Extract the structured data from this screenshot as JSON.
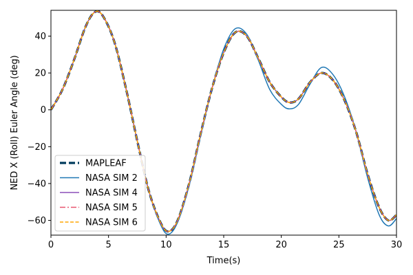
{
  "chart_data": {
    "type": "line",
    "title": "",
    "xlabel": "Time(s)",
    "ylabel": "NED X (Roll) Euler Angle (deg)",
    "xlim": [
      0,
      30
    ],
    "ylim": [
      -68,
      54
    ],
    "xticks": [
      0,
      5,
      10,
      15,
      20,
      25,
      30
    ],
    "yticks": [
      -60,
      -40,
      -20,
      0,
      20,
      40
    ],
    "grid": false,
    "legend_position": "lower-left",
    "x": [
      0,
      1,
      2,
      3,
      3.8,
      4.5,
      5.5,
      6.5,
      7.5,
      8.5,
      9.5,
      10.2,
      11,
      12,
      13,
      14,
      15,
      16,
      17,
      18,
      19,
      20,
      20.7,
      21.5,
      22.5,
      23.5,
      24.5,
      25.5,
      26.5,
      27.5,
      28.5,
      29.3,
      30
    ],
    "series": [
      {
        "name": "MAPLEAF",
        "color": "#003a5c",
        "dash": "dashed-thick",
        "values": [
          0,
          11,
          27,
          45,
          53,
          51,
          37,
          12,
          -17,
          -44,
          -61,
          -66,
          -60,
          -40,
          -13,
          12,
          31,
          42,
          40,
          28,
          15,
          7,
          4,
          6,
          15,
          20,
          16,
          5,
          -12,
          -35,
          -53,
          -60,
          -57
        ]
      },
      {
        "name": "NASA SIM 2",
        "color": "#1f77b4",
        "dash": "solid",
        "values": [
          0,
          11,
          27,
          45,
          53,
          51,
          37,
          12,
          -17,
          -44,
          -62,
          -67.5,
          -61,
          -41,
          -14,
          12,
          33,
          44,
          41,
          27,
          11,
          3,
          0.5,
          3,
          14,
          23,
          19,
          7,
          -12,
          -37,
          -57,
          -63,
          -59
        ]
      },
      {
        "name": "NASA SIM 4",
        "color": "#8a4fb8",
        "dash": "solid",
        "values": [
          0,
          11,
          27,
          45,
          53,
          51,
          37,
          12,
          -17,
          -44,
          -61,
          -66,
          -60,
          -40,
          -13,
          12,
          31,
          42,
          40,
          28,
          15,
          7,
          4,
          6,
          15,
          20,
          16,
          5,
          -12,
          -35,
          -53,
          -60,
          -57
        ]
      },
      {
        "name": "NASA SIM 5",
        "color": "#e8526e",
        "dash": "dashdot",
        "values": [
          0,
          11,
          27,
          45,
          53,
          51,
          37,
          12,
          -17,
          -44,
          -61,
          -66,
          -60,
          -40,
          -13,
          12,
          31,
          42,
          40,
          28,
          15,
          7,
          4,
          6,
          15,
          20,
          16,
          5,
          -12,
          -35,
          -53,
          -60,
          -57
        ]
      },
      {
        "name": "NASA SIM 6",
        "color": "#ffa500",
        "dash": "dashed",
        "values": [
          0,
          11,
          27,
          45,
          53,
          51,
          37,
          12,
          -17,
          -44,
          -61,
          -66,
          -60,
          -40,
          -13,
          12,
          31,
          42,
          40,
          28,
          15,
          7,
          4,
          6,
          15,
          20,
          16,
          5,
          -12,
          -35,
          -53,
          -60,
          -57
        ]
      }
    ]
  }
}
